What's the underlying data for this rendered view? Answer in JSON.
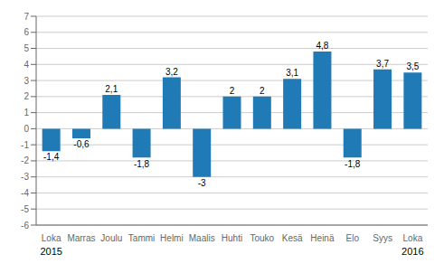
{
  "chart_data": {
    "type": "bar",
    "categories": [
      "Loka",
      "Marras",
      "Joulu",
      "Tammi",
      "Helmi",
      "Maalis",
      "Huhti",
      "Touko",
      "Kesä",
      "Heinä",
      "Elo",
      "Syys",
      "Loka"
    ],
    "values": [
      -1.4,
      -0.6,
      2.1,
      -1.8,
      3.2,
      -3.0,
      2.0,
      2.0,
      3.1,
      4.8,
      -1.8,
      3.7,
      3.5
    ],
    "value_labels": [
      "-1,4",
      "-0,6",
      "2,1",
      "-1,8",
      "3,2",
      "-3",
      "2",
      "2",
      "3,1",
      "4,8",
      "-1,8",
      "3,7",
      "3,5"
    ],
    "color": "#1f7ab5",
    "ylim": [
      -6,
      7
    ],
    "yticks": [
      -6,
      -5,
      -4,
      -3,
      -2,
      -1,
      0,
      1,
      2,
      3,
      4,
      5,
      6,
      7
    ],
    "grid": true,
    "data_labels": true,
    "annotations": [
      {
        "text": "2015",
        "x": 0
      },
      {
        "text": "2016",
        "x": 12
      }
    ]
  }
}
